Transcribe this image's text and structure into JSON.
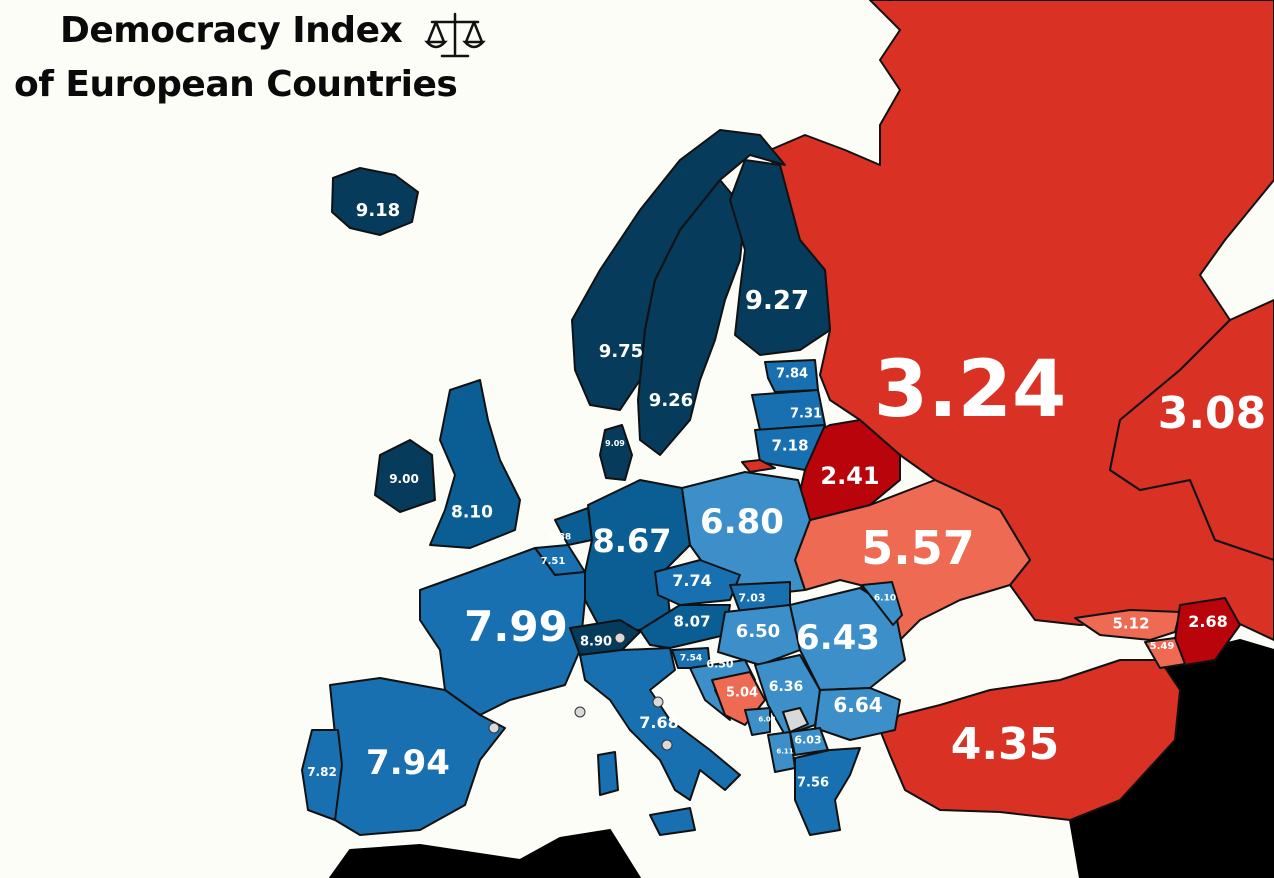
{
  "title": {
    "line1": "Democracy Index",
    "line2": "of European Countries",
    "icon": "scales-of-justice-icon"
  },
  "colors": {
    "full_democracy": "#063b5c",
    "flawed_high": "#0a5e94",
    "flawed_mid": "#1870b0",
    "flawed_low": "#3c8fc8",
    "hybrid": "#ee6a52",
    "authoritarian": "#d93124",
    "authoritarian_deep": "#b8040a",
    "sea": "#fdfdf8",
    "outside": "#000000"
  },
  "regions": [
    {
      "name": "russia",
      "value": "3.24"
    },
    {
      "name": "kazakhstan",
      "value": "3.08"
    },
    {
      "name": "turkey",
      "value": "4.35"
    },
    {
      "name": "ukraine",
      "value": "5.57"
    },
    {
      "name": "belarus",
      "value": "2.41"
    },
    {
      "name": "georgia",
      "value": "5.12"
    },
    {
      "name": "azerbaijan",
      "value": "2.68"
    },
    {
      "name": "armenia",
      "value": "5.49"
    },
    {
      "name": "iceland",
      "value": "9.18"
    },
    {
      "name": "norway",
      "value": "9.75"
    },
    {
      "name": "sweden",
      "value": "9.26"
    },
    {
      "name": "finland",
      "value": "9.27"
    },
    {
      "name": "estonia",
      "value": "7.84"
    },
    {
      "name": "latvia",
      "value": "7.31"
    },
    {
      "name": "lithuania",
      "value": "7.18"
    },
    {
      "name": "denmark",
      "value": "9.09"
    },
    {
      "name": "ireland",
      "value": "9.00"
    },
    {
      "name": "united-kingdom",
      "value": "8.10"
    },
    {
      "name": "netherlands",
      "value": "8.88"
    },
    {
      "name": "belgium",
      "value": "7.51"
    },
    {
      "name": "germany",
      "value": "8.67"
    },
    {
      "name": "poland",
      "value": "6.80"
    },
    {
      "name": "france",
      "value": "7.99"
    },
    {
      "name": "czechia",
      "value": "7.74"
    },
    {
      "name": "slovakia",
      "value": "7.03"
    },
    {
      "name": "austria",
      "value": "8.07"
    },
    {
      "name": "switzerland",
      "value": "8.90"
    },
    {
      "name": "hungary",
      "value": "6.50"
    },
    {
      "name": "moldova",
      "value": "6.10"
    },
    {
      "name": "romania",
      "value": "6.43"
    },
    {
      "name": "slovenia",
      "value": "7.54"
    },
    {
      "name": "croatia",
      "value": "6.50"
    },
    {
      "name": "serbia",
      "value": "6.36"
    },
    {
      "name": "bosnia",
      "value": "5.04"
    },
    {
      "name": "montenegro",
      "value": "6.02"
    },
    {
      "name": "bulgaria",
      "value": "6.64"
    },
    {
      "name": "north-macedonia",
      "value": "6.03"
    },
    {
      "name": "albania",
      "value": "6.11"
    },
    {
      "name": "greece",
      "value": "7.56"
    },
    {
      "name": "italy",
      "value": "7.68"
    },
    {
      "name": "spain",
      "value": "7.94"
    },
    {
      "name": "portugal",
      "value": "7.82"
    }
  ]
}
